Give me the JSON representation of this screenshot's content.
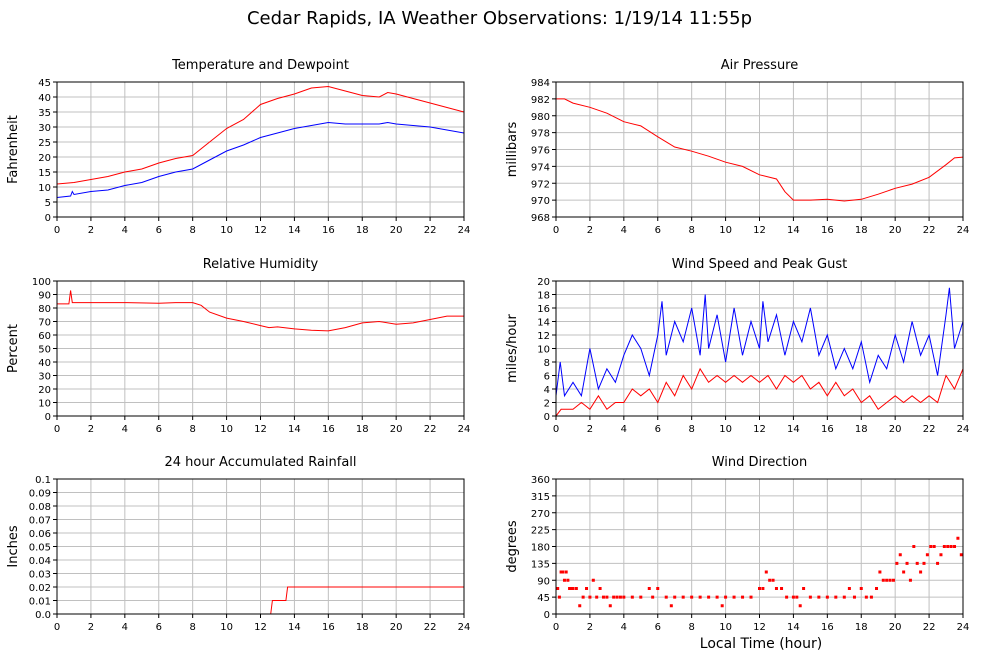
{
  "title": "Cedar Rapids, IA Weather Observations: 1/19/14 11:55p",
  "xlabel": "Local Time (hour)",
  "colors": {
    "red": "#ff0000",
    "blue": "#0000ff",
    "grid": "#c0c0c0",
    "axis": "#000000"
  },
  "chart_data": [
    {
      "id": "temperature",
      "type": "line",
      "title": "Temperature and Dewpoint",
      "ylabel": "Fahrenheit",
      "xlim": [
        0,
        24
      ],
      "ylim": [
        0,
        45
      ],
      "xticks": [
        "0",
        "2",
        "4",
        "6",
        "8",
        "10",
        "12",
        "14",
        "16",
        "18",
        "20",
        "22",
        "24"
      ],
      "yticks": [
        "0",
        "5",
        "10",
        "15",
        "20",
        "25",
        "30",
        "35",
        "40",
        "45"
      ],
      "grid": true,
      "series": [
        {
          "color": "#ff0000",
          "x": [
            0,
            1,
            2,
            3,
            4,
            5,
            6,
            7,
            8,
            9,
            10,
            11,
            12,
            13,
            14,
            15,
            16,
            17,
            18,
            19,
            19.5,
            20,
            21,
            22,
            23,
            24
          ],
          "values": [
            11,
            11.5,
            12.5,
            13.5,
            15,
            16,
            18,
            19.5,
            20.5,
            25,
            29.5,
            32.5,
            37.5,
            39.5,
            41,
            43,
            43.5,
            42,
            40.5,
            40,
            41.5,
            41,
            39.5,
            38,
            36.5,
            35
          ]
        },
        {
          "color": "#0000ff",
          "x": [
            0,
            0.8,
            0.9,
            1,
            2,
            3,
            4,
            5,
            6,
            7,
            8,
            9,
            10,
            11,
            12,
            13,
            14,
            15,
            16,
            17,
            18,
            19,
            19.5,
            20,
            21,
            22,
            23,
            24
          ],
          "values": [
            6.5,
            7,
            8.5,
            7.5,
            8.5,
            9,
            10.5,
            11.5,
            13.5,
            15,
            16,
            19,
            22,
            24,
            26.5,
            28,
            29.5,
            30.5,
            31.5,
            31,
            31,
            31,
            31.5,
            31,
            30.5,
            30,
            29,
            28
          ]
        }
      ]
    },
    {
      "id": "pressure",
      "type": "line",
      "title": "Air Pressure",
      "ylabel": "millibars",
      "xlim": [
        0,
        24
      ],
      "ylim": [
        968,
        984
      ],
      "xticks": [
        "0",
        "2",
        "4",
        "6",
        "8",
        "10",
        "12",
        "14",
        "16",
        "18",
        "20",
        "22",
        "24"
      ],
      "yticks": [
        "968",
        "970",
        "972",
        "974",
        "976",
        "978",
        "980",
        "982",
        "984"
      ],
      "grid": true,
      "series": [
        {
          "color": "#ff0000",
          "x": [
            0,
            0.5,
            1,
            2,
            3,
            4,
            5,
            6,
            7,
            8,
            9,
            10,
            11,
            12,
            13,
            13.5,
            14,
            15,
            16,
            17,
            18,
            19,
            20,
            21,
            22,
            23,
            23.5,
            24
          ],
          "values": [
            982,
            982,
            981.5,
            981,
            980.3,
            979.3,
            978.8,
            977.5,
            976.3,
            975.8,
            975.2,
            974.5,
            974,
            973,
            972.5,
            971,
            970,
            970,
            970.1,
            969.9,
            970.1,
            970.7,
            971.4,
            971.9,
            972.7,
            974.2,
            975,
            975.1
          ]
        }
      ]
    },
    {
      "id": "humidity",
      "type": "line",
      "title": "Relative Humidity",
      "ylabel": "Percent",
      "xlim": [
        0,
        24
      ],
      "ylim": [
        0,
        100
      ],
      "xticks": [
        "0",
        "2",
        "4",
        "6",
        "8",
        "10",
        "12",
        "14",
        "16",
        "18",
        "20",
        "22",
        "24"
      ],
      "yticks": [
        "0",
        "10",
        "20",
        "30",
        "40",
        "50",
        "60",
        "70",
        "80",
        "90",
        "100"
      ],
      "grid": true,
      "series": [
        {
          "color": "#ff0000",
          "x": [
            0,
            0.7,
            0.8,
            0.9,
            1,
            2,
            4,
            6,
            7,
            8,
            8.5,
            9,
            10,
            11,
            12,
            12.5,
            13,
            14,
            15,
            16,
            17,
            18,
            19,
            20,
            21,
            22,
            23,
            24
          ],
          "values": [
            83,
            83,
            93,
            84,
            84,
            84,
            84,
            83.5,
            84,
            84,
            82,
            77,
            72.5,
            70,
            67,
            65.5,
            66,
            64.5,
            63.5,
            63,
            65.5,
            69,
            70,
            68,
            69,
            71.5,
            74,
            74
          ]
        }
      ]
    },
    {
      "id": "wind",
      "type": "line",
      "title": "Wind Speed and Peak Gust",
      "ylabel": "miles/hour",
      "xlim": [
        0,
        24
      ],
      "ylim": [
        0,
        20
      ],
      "xticks": [
        "0",
        "2",
        "4",
        "6",
        "8",
        "10",
        "12",
        "14",
        "16",
        "18",
        "20",
        "22",
        "24"
      ],
      "yticks": [
        "0",
        "2",
        "4",
        "6",
        "8",
        "10",
        "12",
        "14",
        "16",
        "18",
        "20"
      ],
      "grid": true,
      "series": [
        {
          "color": "#0000ff",
          "x": [
            0,
            0.25,
            0.5,
            1,
            1.5,
            2,
            2.5,
            3,
            3.5,
            4,
            4.5,
            5,
            5.5,
            6,
            6.25,
            6.5,
            7,
            7.5,
            8,
            8.5,
            8.8,
            9,
            9.5,
            10,
            10.5,
            11,
            11.5,
            12,
            12.2,
            12.5,
            13,
            13.5,
            14,
            14.5,
            15,
            15.5,
            16,
            16.5,
            17,
            17.5,
            18,
            18.5,
            19,
            19.5,
            20,
            20.5,
            21,
            21.5,
            22,
            22.5,
            23,
            23.2,
            23.5,
            24
          ],
          "values": [
            3,
            8,
            3,
            5,
            3,
            10,
            4,
            7,
            5,
            9,
            12,
            10,
            6,
            12,
            17,
            9,
            14,
            11,
            16,
            9,
            18,
            10,
            15,
            8,
            16,
            9,
            14,
            10,
            17,
            11,
            15,
            9,
            14,
            11,
            16,
            9,
            12,
            7,
            10,
            7,
            11,
            5,
            9,
            7,
            12,
            8,
            14,
            9,
            12,
            6,
            15,
            19,
            10,
            14
          ]
        },
        {
          "color": "#ff0000",
          "x": [
            0,
            0.3,
            0.6,
            1,
            1.5,
            2,
            2.5,
            3,
            3.5,
            4,
            4.5,
            5,
            5.5,
            6,
            6.5,
            7,
            7.5,
            8,
            8.5,
            9,
            9.5,
            10,
            10.5,
            11,
            11.5,
            12,
            12.5,
            13,
            13.5,
            14,
            14.5,
            15,
            15.5,
            16,
            16.5,
            17,
            17.5,
            18,
            18.5,
            19,
            19.5,
            20,
            20.5,
            21,
            21.5,
            22,
            22.5,
            23,
            23.5,
            24
          ],
          "values": [
            0,
            1,
            1,
            1,
            2,
            1,
            3,
            1,
            2,
            2,
            4,
            3,
            4,
            2,
            5,
            3,
            6,
            4,
            7,
            5,
            6,
            5,
            6,
            5,
            6,
            5,
            6,
            4,
            6,
            5,
            6,
            4,
            5,
            3,
            5,
            3,
            4,
            2,
            3,
            1,
            2,
            3,
            2,
            3,
            2,
            3,
            2,
            6,
            4,
            7
          ]
        }
      ]
    },
    {
      "id": "rainfall",
      "type": "line",
      "title": "24 hour Accumulated Rainfall",
      "ylabel": "Inches",
      "xlim": [
        0,
        24
      ],
      "ylim": [
        0,
        0.1
      ],
      "xticks": [
        "0",
        "2",
        "4",
        "6",
        "8",
        "10",
        "12",
        "14",
        "16",
        "18",
        "20",
        "22",
        "24"
      ],
      "yticks": [
        "0.0",
        "0.01",
        "0.02",
        "0.03",
        "0.04",
        "0.05",
        "0.06",
        "0.07",
        "0.08",
        "0.09",
        "0.1"
      ],
      "grid": true,
      "series": [
        {
          "color": "#ff0000",
          "x": [
            0,
            12.6,
            12.7,
            13.5,
            13.6,
            24
          ],
          "values": [
            0,
            0,
            0.01,
            0.01,
            0.02,
            0.02
          ]
        }
      ]
    },
    {
      "id": "direction",
      "type": "scatter",
      "title": "Wind Direction",
      "ylabel": "degrees",
      "xlim": [
        0,
        24
      ],
      "ylim": [
        0,
        360
      ],
      "xticks": [
        "0",
        "2",
        "4",
        "6",
        "8",
        "10",
        "12",
        "14",
        "16",
        "18",
        "20",
        "22",
        "24"
      ],
      "yticks": [
        "0",
        "45",
        "90",
        "135",
        "180",
        "225",
        "270",
        "315",
        "360"
      ],
      "grid": true,
      "series": [
        {
          "color": "#ff0000",
          "x": [
            0.1,
            0.2,
            0.3,
            0.4,
            0.5,
            0.6,
            0.7,
            0.8,
            0.9,
            1.0,
            1.2,
            1.4,
            1.6,
            1.8,
            2.0,
            2.2,
            2.4,
            2.6,
            2.8,
            3.0,
            3.2,
            3.4,
            3.6,
            3.8,
            4.0,
            4.5,
            5.0,
            5.5,
            5.7,
            6.0,
            6.5,
            6.8,
            7.0,
            7.5,
            8.0,
            8.5,
            9.0,
            9.5,
            9.8,
            10.0,
            10.5,
            11.0,
            11.5,
            12.0,
            12.2,
            12.4,
            12.6,
            12.8,
            13.0,
            13.3,
            13.6,
            14.0,
            14.2,
            14.4,
            14.6,
            15.0,
            15.5,
            16.0,
            16.5,
            17.0,
            17.3,
            17.6,
            18.0,
            18.3,
            18.6,
            18.9,
            19.1,
            19.3,
            19.5,
            19.7,
            19.9,
            20.1,
            20.3,
            20.5,
            20.7,
            20.9,
            21.1,
            21.3,
            21.5,
            21.7,
            21.9,
            22.1,
            22.3,
            22.5,
            22.7,
            22.9,
            23.1,
            23.3,
            23.5,
            23.7,
            23.9
          ],
          "values": [
            68,
            45,
            112,
            112,
            90,
            112,
            90,
            68,
            68,
            68,
            68,
            22,
            45,
            68,
            45,
            90,
            45,
            68,
            45,
            45,
            22,
            45,
            45,
            45,
            45,
            45,
            45,
            68,
            45,
            68,
            45,
            22,
            45,
            45,
            45,
            45,
            45,
            45,
            22,
            45,
            45,
            45,
            45,
            68,
            68,
            112,
            90,
            90,
            68,
            68,
            45,
            45,
            45,
            22,
            68,
            45,
            45,
            45,
            45,
            45,
            68,
            45,
            68,
            45,
            45,
            68,
            112,
            90,
            90,
            90,
            90,
            135,
            158,
            112,
            135,
            90,
            180,
            135,
            112,
            135,
            158,
            180,
            180,
            135,
            158,
            180,
            180,
            180,
            180,
            202,
            158
          ]
        }
      ]
    }
  ]
}
